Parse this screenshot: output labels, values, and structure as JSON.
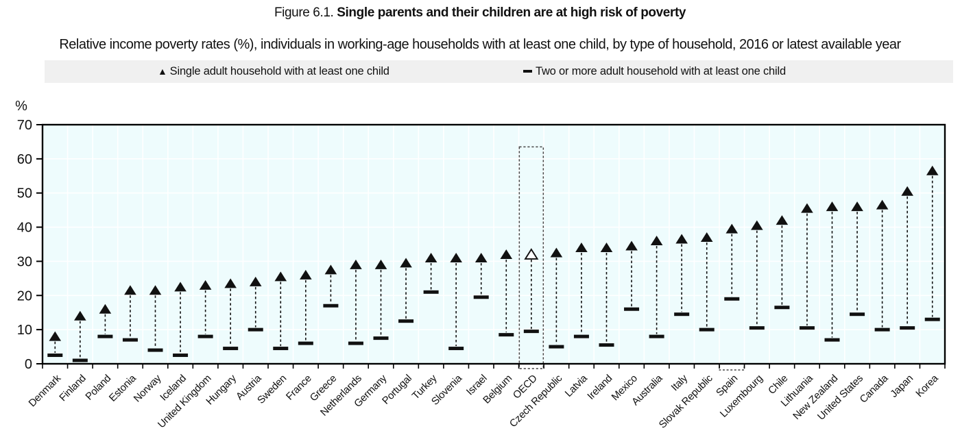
{
  "figure": {
    "title_prefix": "Figure 6.1. ",
    "title": "Single parents and their children are at high risk of poverty",
    "subtitle": "Relative income poverty rates (%), individuals in working-age households with at least one child, by type of household, 2016 or latest available year"
  },
  "legend": {
    "items": [
      {
        "marker": "triangle-icon",
        "label": "Single adult household with at least one child"
      },
      {
        "marker": "dash-icon",
        "label": "Two or more adult household with at least one child"
      }
    ]
  },
  "colors": {
    "marker": "#111111",
    "plot_bg": "#eefcfd",
    "grid": "#ffffff",
    "legend_bg": "#f0f0f0",
    "axis": "#000000",
    "highlight_outline": "#444444"
  },
  "chart_data": {
    "type": "scatter",
    "title": "Single parents and their children are at high risk of poverty",
    "xlabel": "",
    "ylabel": "%",
    "ylim": [
      0,
      70
    ],
    "yticks": [
      0,
      10,
      20,
      30,
      40,
      50,
      60,
      70
    ],
    "grid": true,
    "legend_position": "top",
    "categories": [
      "Denmark",
      "Finland",
      "Poland",
      "Estonia",
      "Norway",
      "Iceland",
      "United Kingdom",
      "Hungary",
      "Austria",
      "Sweden",
      "France",
      "Greece",
      "Netherlands",
      "Germany",
      "Portugal",
      "Turkey",
      "Slovenia",
      "Israel",
      "Belgium",
      "OECD",
      "Czech Republic",
      "Latvia",
      "Ireland",
      "Mexico",
      "Australia",
      "Italy",
      "Slovak Republic",
      "Spain",
      "Luxembourg",
      "Chile",
      "Lithuania",
      "New Zealand",
      "United States",
      "Canada",
      "Japan",
      "Korea"
    ],
    "series": [
      {
        "name": "Single adult household with at least one child",
        "marker": "filled-triangle",
        "values": [
          8,
          14,
          16,
          21.5,
          21.5,
          22.5,
          23,
          23.5,
          24,
          25.5,
          26,
          27.5,
          29,
          29,
          29.5,
          31,
          31,
          31,
          32,
          32,
          32.5,
          34,
          34,
          34.5,
          36,
          36.5,
          37,
          39.5,
          40.5,
          42,
          45.5,
          46,
          46,
          46.5,
          50.5,
          56.5
        ]
      },
      {
        "name": "Two or more adult household with at least one child",
        "marker": "horizontal-dash",
        "values": [
          2.5,
          1,
          8,
          7,
          4,
          2.5,
          8,
          4.5,
          10,
          4.5,
          6,
          17,
          6,
          7.5,
          12.5,
          21,
          4.5,
          19.5,
          8.5,
          9.5,
          5,
          8,
          5.5,
          16,
          8,
          14.5,
          10,
          19,
          10.5,
          16.5,
          10.5,
          7,
          14.5,
          10,
          10.5,
          13
        ]
      }
    ],
    "highlight": {
      "category": "OECD",
      "style": "hollow-triangle-with-dashed-box",
      "box_top_value": 63.5
    },
    "secondary_highlight": {
      "category": "Spain",
      "style": "dashed-box-fragment-below-axis"
    }
  }
}
